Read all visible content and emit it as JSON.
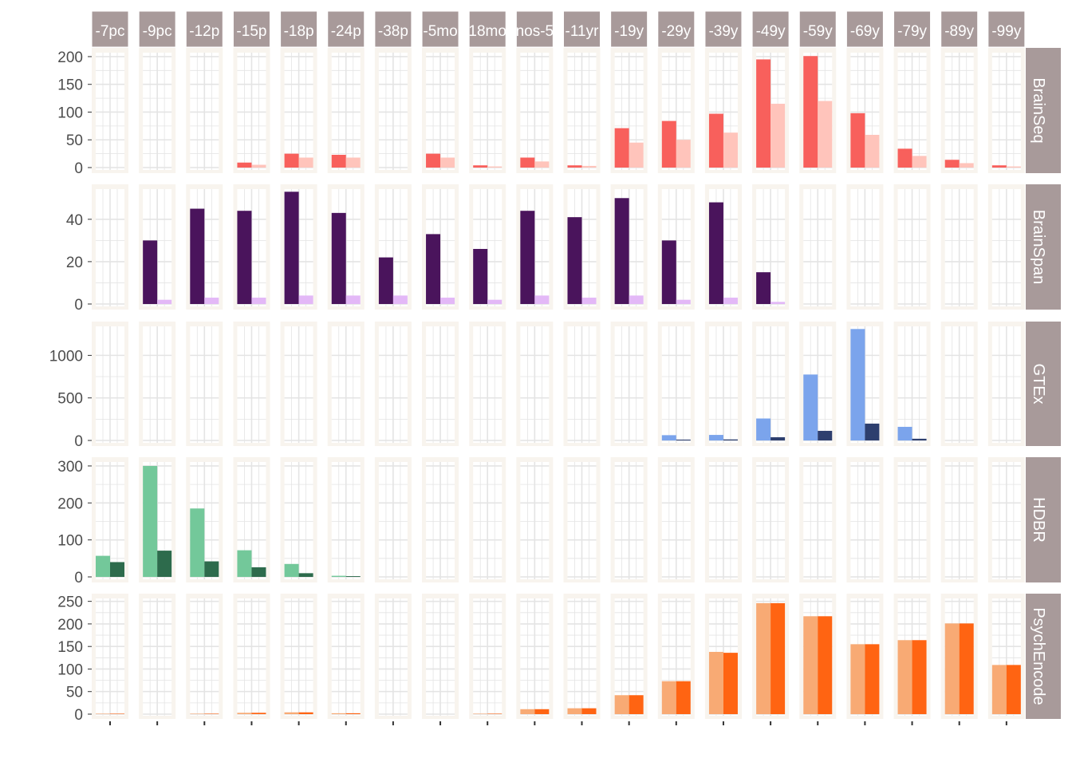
{
  "chart_data": {
    "type": "bar",
    "layout": "facet_grid",
    "title": "",
    "xlabel": "",
    "ylabel": "",
    "grid": true,
    "legend": "none",
    "columns": [
      "-7pc",
      "-9pc",
      "-12p",
      "-15p",
      "-18p",
      "-24p",
      "-38p",
      "-5mo",
      "18mo",
      "nos-5",
      "-11yr",
      "-19y",
      "-29y",
      "-39y",
      "-49y",
      "-59y",
      "-69y",
      "-79y",
      "-89y",
      "-99y"
    ],
    "rows": [
      {
        "name": "BrainSeq",
        "ylim": [
          0,
          210
        ],
        "yticks": [
          0,
          50,
          100,
          150,
          200
        ],
        "series": [
          {
            "color": "#F8605C",
            "values": [
              0,
              0,
              0,
              9,
              25,
              23,
              0,
              25,
              4,
              18,
              4,
              71,
              84,
              97,
              195,
              201,
              98,
              34,
              14,
              4
            ]
          },
          {
            "color": "#FFC4BB",
            "values": [
              0,
              0,
              0,
              5,
              18,
              18,
              0,
              18,
              2,
              11,
              3,
              45,
              50,
              63,
              115,
              120,
              59,
              21,
              8,
              2
            ]
          }
        ]
      },
      {
        "name": "BrainSpan",
        "ylim": [
          0,
          55
        ],
        "yticks": [
          0,
          20,
          40
        ],
        "series": [
          {
            "color": "#4A145C",
            "values": [
              0,
              30,
              45,
              44,
              53,
              43,
              22,
              33,
              26,
              44,
              41,
              50,
              30,
              48,
              15,
              0,
              0,
              0,
              0,
              0
            ]
          },
          {
            "color": "#E3B8F7",
            "values": [
              0,
              2,
              3,
              3,
              4,
              4,
              4,
              3,
              2,
              4,
              3,
              4,
              2,
              3,
              1,
              0,
              0,
              0,
              0,
              0
            ]
          }
        ]
      },
      {
        "name": "GTEx",
        "ylim": [
          0,
          1360
        ],
        "yticks": [
          0,
          500,
          1000
        ],
        "yticklabels": [
          "0",
          "500",
          "1000"
        ],
        "series": [
          {
            "color": "#7BA4EC",
            "values": [
              0,
              0,
              0,
              0,
              0,
              0,
              0,
              0,
              0,
              0,
              0,
              0,
              62,
              65,
              258,
              775,
              1310,
              160,
              0,
              0
            ]
          },
          {
            "color": "#2E3F6E",
            "values": [
              0,
              0,
              0,
              0,
              0,
              0,
              0,
              0,
              0,
              0,
              0,
              0,
              10,
              12,
              38,
              113,
              198,
              20,
              0,
              0
            ]
          }
        ]
      },
      {
        "name": "HDBR",
        "ylim": [
          0,
          315
        ],
        "yticks": [
          0,
          100,
          200,
          300
        ],
        "series": [
          {
            "color": "#73C89A",
            "values": [
              57,
              300,
              185,
              72,
              35,
              3,
              0,
              0,
              0,
              0,
              0,
              0,
              0,
              0,
              0,
              0,
              0,
              0,
              0,
              0
            ]
          },
          {
            "color": "#2D6B4C",
            "values": [
              40,
              71,
              42,
              26,
              10,
              2,
              0,
              0,
              0,
              0,
              0,
              0,
              0,
              0,
              0,
              0,
              0,
              0,
              0,
              0
            ]
          }
        ]
      },
      {
        "name": "PsychEncode",
        "ylim": [
          0,
          260
        ],
        "yticks": [
          0,
          50,
          100,
          150,
          200,
          250
        ],
        "series": [
          {
            "color": "#F8AA74",
            "values": [
              1,
              0,
              1,
              3,
              4,
              2,
              0,
              0,
              1,
              11,
              13,
              42,
              73,
              138,
              246,
              217,
              155,
              164,
              201,
              109
            ]
          },
          {
            "color": "#FF6412",
            "values": [
              1,
              0,
              1,
              3,
              4,
              2,
              0,
              0,
              1,
              11,
              13,
              42,
              73,
              136,
              246,
              217,
              155,
              164,
              201,
              109
            ]
          }
        ]
      }
    ]
  }
}
